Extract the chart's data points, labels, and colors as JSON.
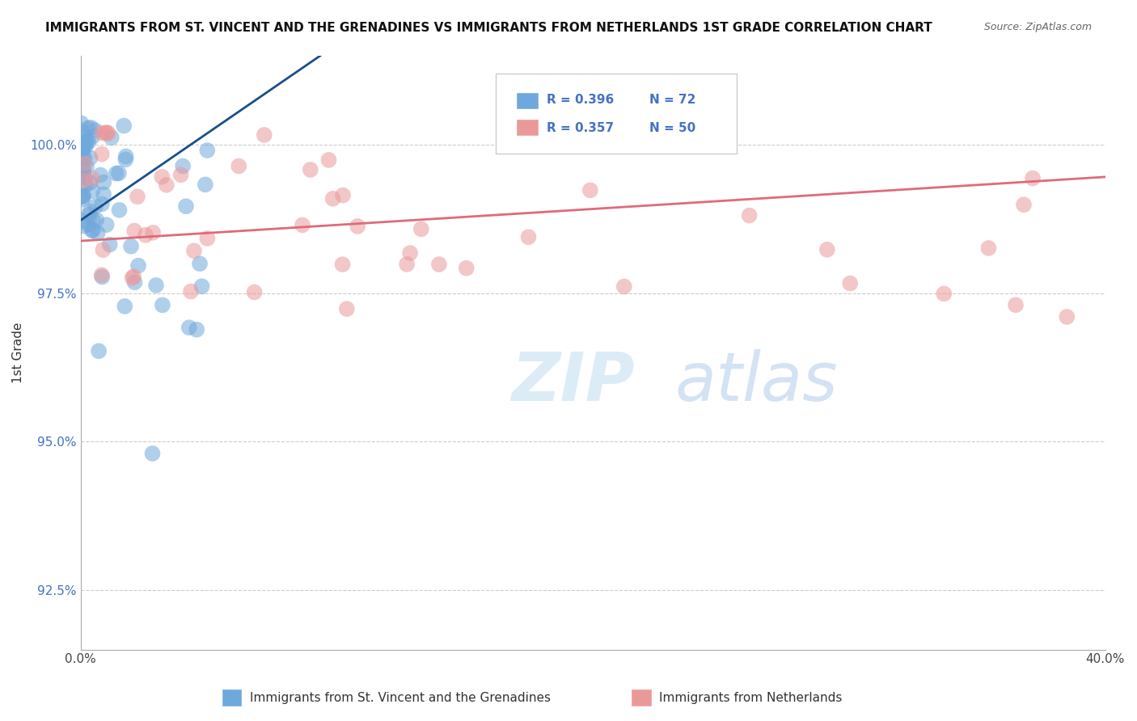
{
  "title": "IMMIGRANTS FROM ST. VINCENT AND THE GRENADINES VS IMMIGRANTS FROM NETHERLANDS 1ST GRADE CORRELATION CHART",
  "source": "Source: ZipAtlas.com",
  "ylabel": "1st Grade",
  "xlim": [
    0.0,
    40.0
  ],
  "ylim": [
    91.5,
    101.5
  ],
  "yticks": [
    92.5,
    95.0,
    97.5,
    100.0
  ],
  "xticks": [
    0.0,
    40.0
  ],
  "xticklabels": [
    "0.0%",
    "40.0%"
  ],
  "yticklabels": [
    "92.5%",
    "95.0%",
    "97.5%",
    "100.0%"
  ],
  "blue_color": "#6fa8dc",
  "pink_color": "#ea9999",
  "blue_line_color": "#1a4e8c",
  "pink_line_color": "#e06a7a",
  "R_blue": 0.396,
  "N_blue": 72,
  "R_pink": 0.357,
  "N_pink": 50,
  "watermark_zip": "ZIP",
  "watermark_atlas": "atlas",
  "legend_R_blue": "R = 0.396",
  "legend_N_blue": "N = 72",
  "legend_R_pink": "R = 0.357",
  "legend_N_pink": "N = 50",
  "bottom_label_blue": "Immigrants from St. Vincent and the Grenadines",
  "bottom_label_pink": "Immigrants from Netherlands"
}
